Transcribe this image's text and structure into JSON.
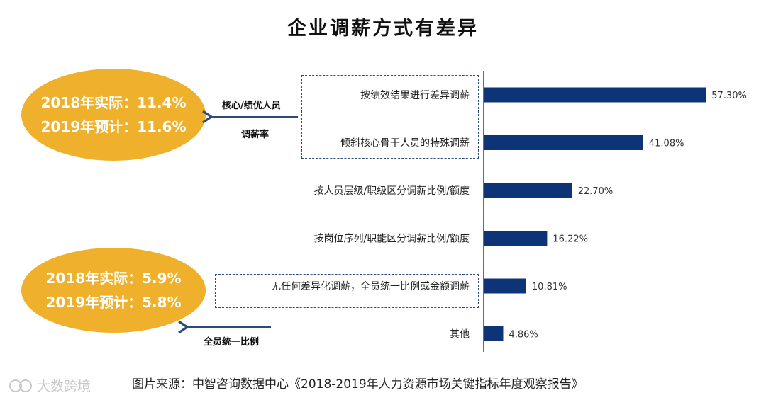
{
  "title": "企业调薪方式有差异",
  "callouts": [
    {
      "line1": "2018年实际：11.4%",
      "line2": "2019年预计：11.6%",
      "note_line1": "核心/绩优人员",
      "note_line2": "调薪率"
    },
    {
      "line1": "2018年实际：5.9%",
      "line2": "2019年预计：5.8%",
      "note_line1": "全员统一比例"
    }
  ],
  "source": "图片来源：中智咨询数据中心《2018-2019年人力资源市场关键指标年度观察报告》",
  "watermark": "大数跨境",
  "colors": {
    "bar": "#0d3477",
    "callout": "#efb02c",
    "dash": "#2e4a7a"
  },
  "chart_data": {
    "type": "bar",
    "orientation": "horizontal",
    "categories": [
      "按绩效结果进行差异调薪",
      "倾斜核心骨干人员的特殊调薪",
      "按人员层级/职级区分调薪比例/额度",
      "按岗位序列/职能区分调薪比例/额度",
      "无任何差异化调薪，全员统一比例或金额调薪",
      "其他"
    ],
    "values": [
      57.3,
      41.08,
      22.7,
      16.22,
      10.81,
      4.86
    ],
    "value_labels": [
      "57.30%",
      "41.08%",
      "22.70%",
      "16.22%",
      "10.81%",
      "4.86%"
    ],
    "xlim": [
      0,
      70
    ]
  }
}
